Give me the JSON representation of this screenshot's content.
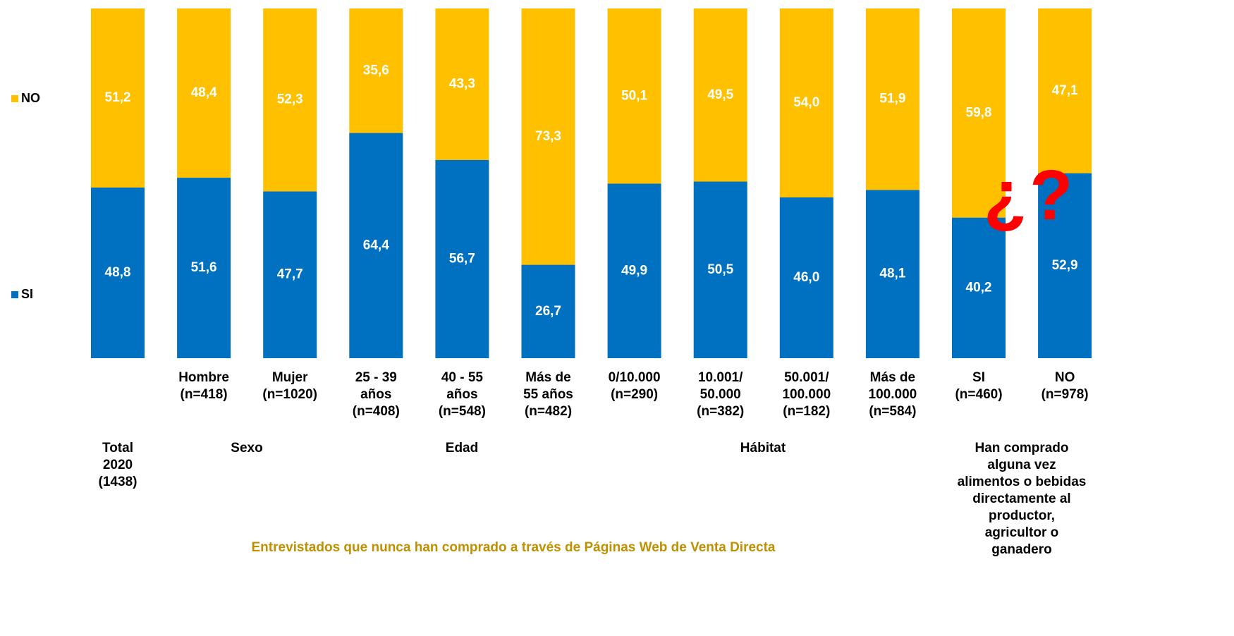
{
  "chart_data": {
    "type": "stacked_bar",
    "categories": [
      null,
      "Hombre\n(n=418)",
      "Mujer\n(n=1020)",
      "25 - 39\naños\n(n=408)",
      "40 - 55\naños\n(n=548)",
      "Más de\n55 años\n(n=482)",
      "0/10.000\n(n=290)",
      "10.001/\n50.000\n(n=382)",
      "50.001/\n100.000\n(n=182)",
      "Más de\n100.000\n(n=584)",
      "SI\n(n=460)",
      "NO\n(n=978)"
    ],
    "series": [
      {
        "name": "SI",
        "color": "#0070c0",
        "values": [
          48.8,
          51.6,
          47.7,
          64.4,
          56.7,
          26.7,
          49.9,
          50.5,
          46.0,
          48.1,
          40.2,
          52.9
        ],
        "value_labels": [
          "48,8",
          "51,6",
          "47,7",
          "64,4",
          "56,7",
          "26,7",
          "49,9",
          "50,5",
          "46,0",
          "48,1",
          "40,2",
          "52,9"
        ]
      },
      {
        "name": "NO",
        "color": "#ffc000",
        "values": [
          51.2,
          48.4,
          52.3,
          35.6,
          43.3,
          73.3,
          50.1,
          49.5,
          54.0,
          51.9,
          59.8,
          47.1
        ],
        "value_labels": [
          "51,2",
          "48,4",
          "52,3",
          "35,6",
          "43,3",
          "73,3",
          "50,1",
          "49,5",
          "54,0",
          "51,9",
          "59,8",
          "47,1"
        ]
      }
    ],
    "ylim": [
      0,
      100
    ],
    "groups": [
      "Total\n2020\n(1438)",
      "Sexo",
      "Edad",
      "Hábitat",
      "Han comprado\nalguna vez\nalimentos o bebidas\ndirectamente al\nproductor,\nagricultor o\nganadero"
    ],
    "footnote": "Entrevistados que nunca han comprado a través de Páginas Web de Venta Directa",
    "annotation": "¿?"
  }
}
